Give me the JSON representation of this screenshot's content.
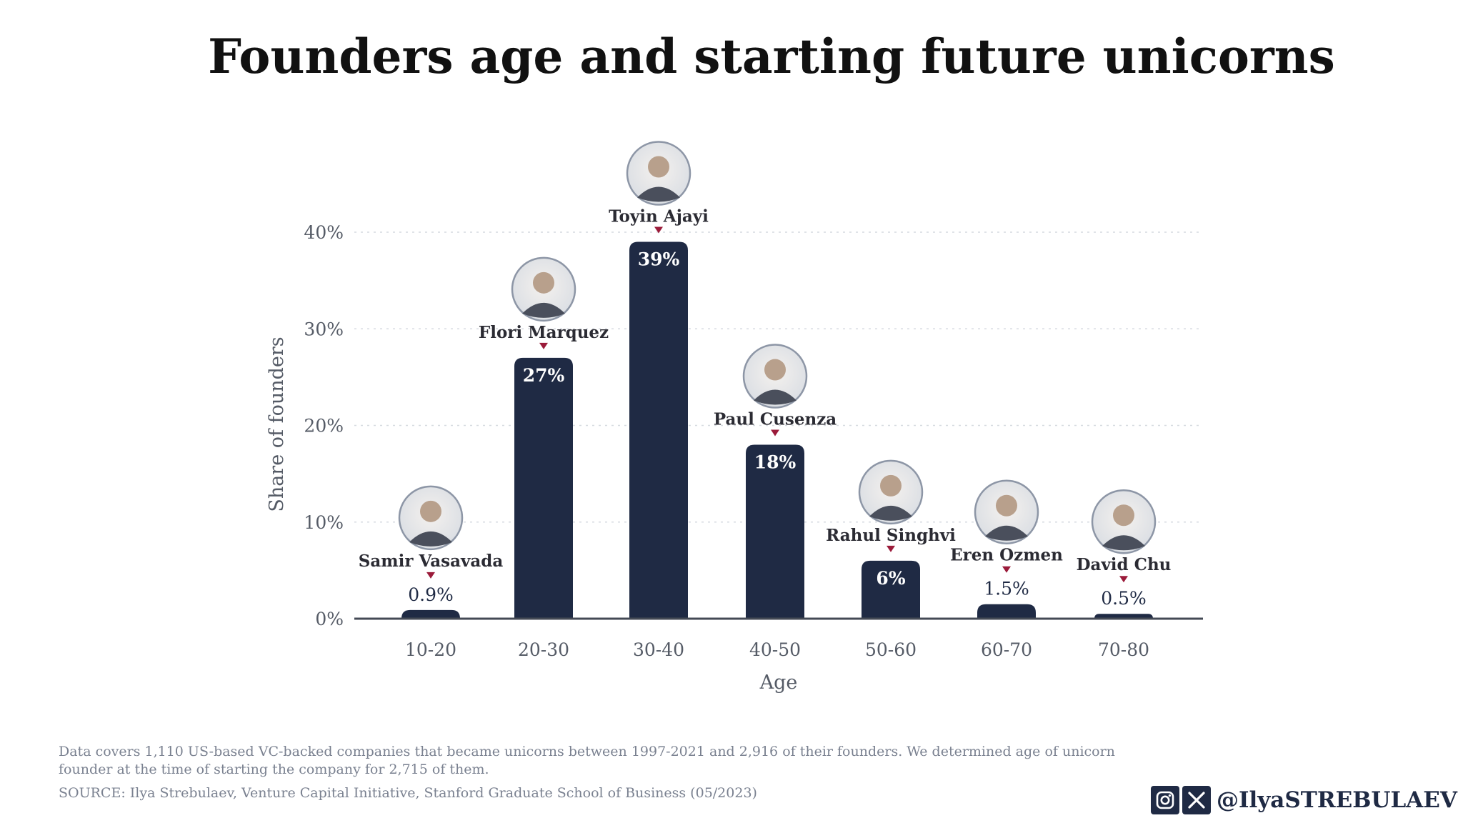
{
  "chart_data": {
    "type": "bar",
    "title": "Founders age and starting future unicorns",
    "xlabel": "Age",
    "ylabel": "Share of founders",
    "categories": [
      "10-20",
      "20-30",
      "30-40",
      "40-50",
      "50-60",
      "60-70",
      "70-80"
    ],
    "values": [
      0.9,
      27,
      39,
      18,
      6,
      1.5,
      0.5
    ],
    "value_labels": [
      "0.9%",
      "27%",
      "39%",
      "18%",
      "6%",
      "1.5%",
      "0.5%"
    ],
    "founders": [
      "Samir Vasavada",
      "Flori Marquez",
      "Toyin Ajayi",
      "Paul Cusenza",
      "Rahul Singhvi",
      "Eren Ozmen",
      "David Chu"
    ],
    "yticks": [
      "0%",
      "10%",
      "20%",
      "30%",
      "40%"
    ],
    "ytick_values": [
      0,
      10,
      20,
      30,
      40
    ],
    "ylim": [
      0,
      40
    ],
    "grid": true,
    "bar_color": "#1f2a44",
    "marker_color": "#9b1b3a"
  },
  "footer": {
    "note": "Data covers 1,110 US-based VC-backed companies that became unicorns between 1997-2021 and 2,916 of their founders. We determined age of unicorn founder at the time of starting the company for 2,715 of them.",
    "source": "SOURCE: Ilya Strebulaev, Venture Capital Initiative, Stanford Graduate School of Business (05/2023)"
  },
  "social": {
    "handle": "@IlyaSTREBULAEV",
    "icons": [
      "instagram-icon",
      "x-icon"
    ]
  }
}
